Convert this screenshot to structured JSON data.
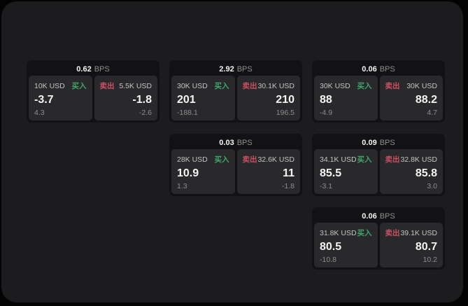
{
  "page": {
    "bps_suffix": "BPS",
    "buy_label": "买入",
    "sell_label": "卖出"
  },
  "colors": {
    "page_bg": "#030303",
    "panel_bg": "#1c1c1e",
    "card_bg": "#121214",
    "cell_bg": "#29292b",
    "buy_green": "#3fa66b",
    "sell_red": "#cc4f63",
    "text_primary": "#f4f4f4",
    "text_muted": "#8e8e8e",
    "text_label": "#c3c3c3"
  },
  "cards": [
    {
      "bps": "0.62",
      "row": 1,
      "col": 1,
      "buy": {
        "amount": "10K USD",
        "value": "-3.7",
        "delta": "4.3"
      },
      "sell": {
        "amount": "5.5K USD",
        "value": "-1.8",
        "delta": "-2.6"
      }
    },
    {
      "bps": "2.92",
      "row": 1,
      "col": 2,
      "buy": {
        "amount": "30K USD",
        "value": "201",
        "delta": "-188.1"
      },
      "sell": {
        "amount": "30.1K USD",
        "value": "210",
        "delta": "196.5"
      }
    },
    {
      "bps": "0.06",
      "row": 1,
      "col": 3,
      "buy": {
        "amount": "30K USD",
        "value": "88",
        "delta": "-4.9"
      },
      "sell": {
        "amount": "30K USD",
        "value": "88.2",
        "delta": "4.7"
      }
    },
    {
      "bps": "0.03",
      "row": 2,
      "col": 2,
      "buy": {
        "amount": "28K USD",
        "value": "10.9",
        "delta": "1.3"
      },
      "sell": {
        "amount": "32.6K USD",
        "value": "11",
        "delta": "-1.8"
      }
    },
    {
      "bps": "0.09",
      "row": 2,
      "col": 3,
      "buy": {
        "amount": "34.1K USD",
        "value": "85.5",
        "delta": "-3.1"
      },
      "sell": {
        "amount": "32.8K USD",
        "value": "85.8",
        "delta": "3.0"
      }
    },
    {
      "bps": "0.06",
      "row": 3,
      "col": 3,
      "buy": {
        "amount": "31.8K USD",
        "value": "80.5",
        "delta": "-10.8"
      },
      "sell": {
        "amount": "39.1K USD",
        "value": "80.7",
        "delta": "10.2"
      }
    }
  ]
}
